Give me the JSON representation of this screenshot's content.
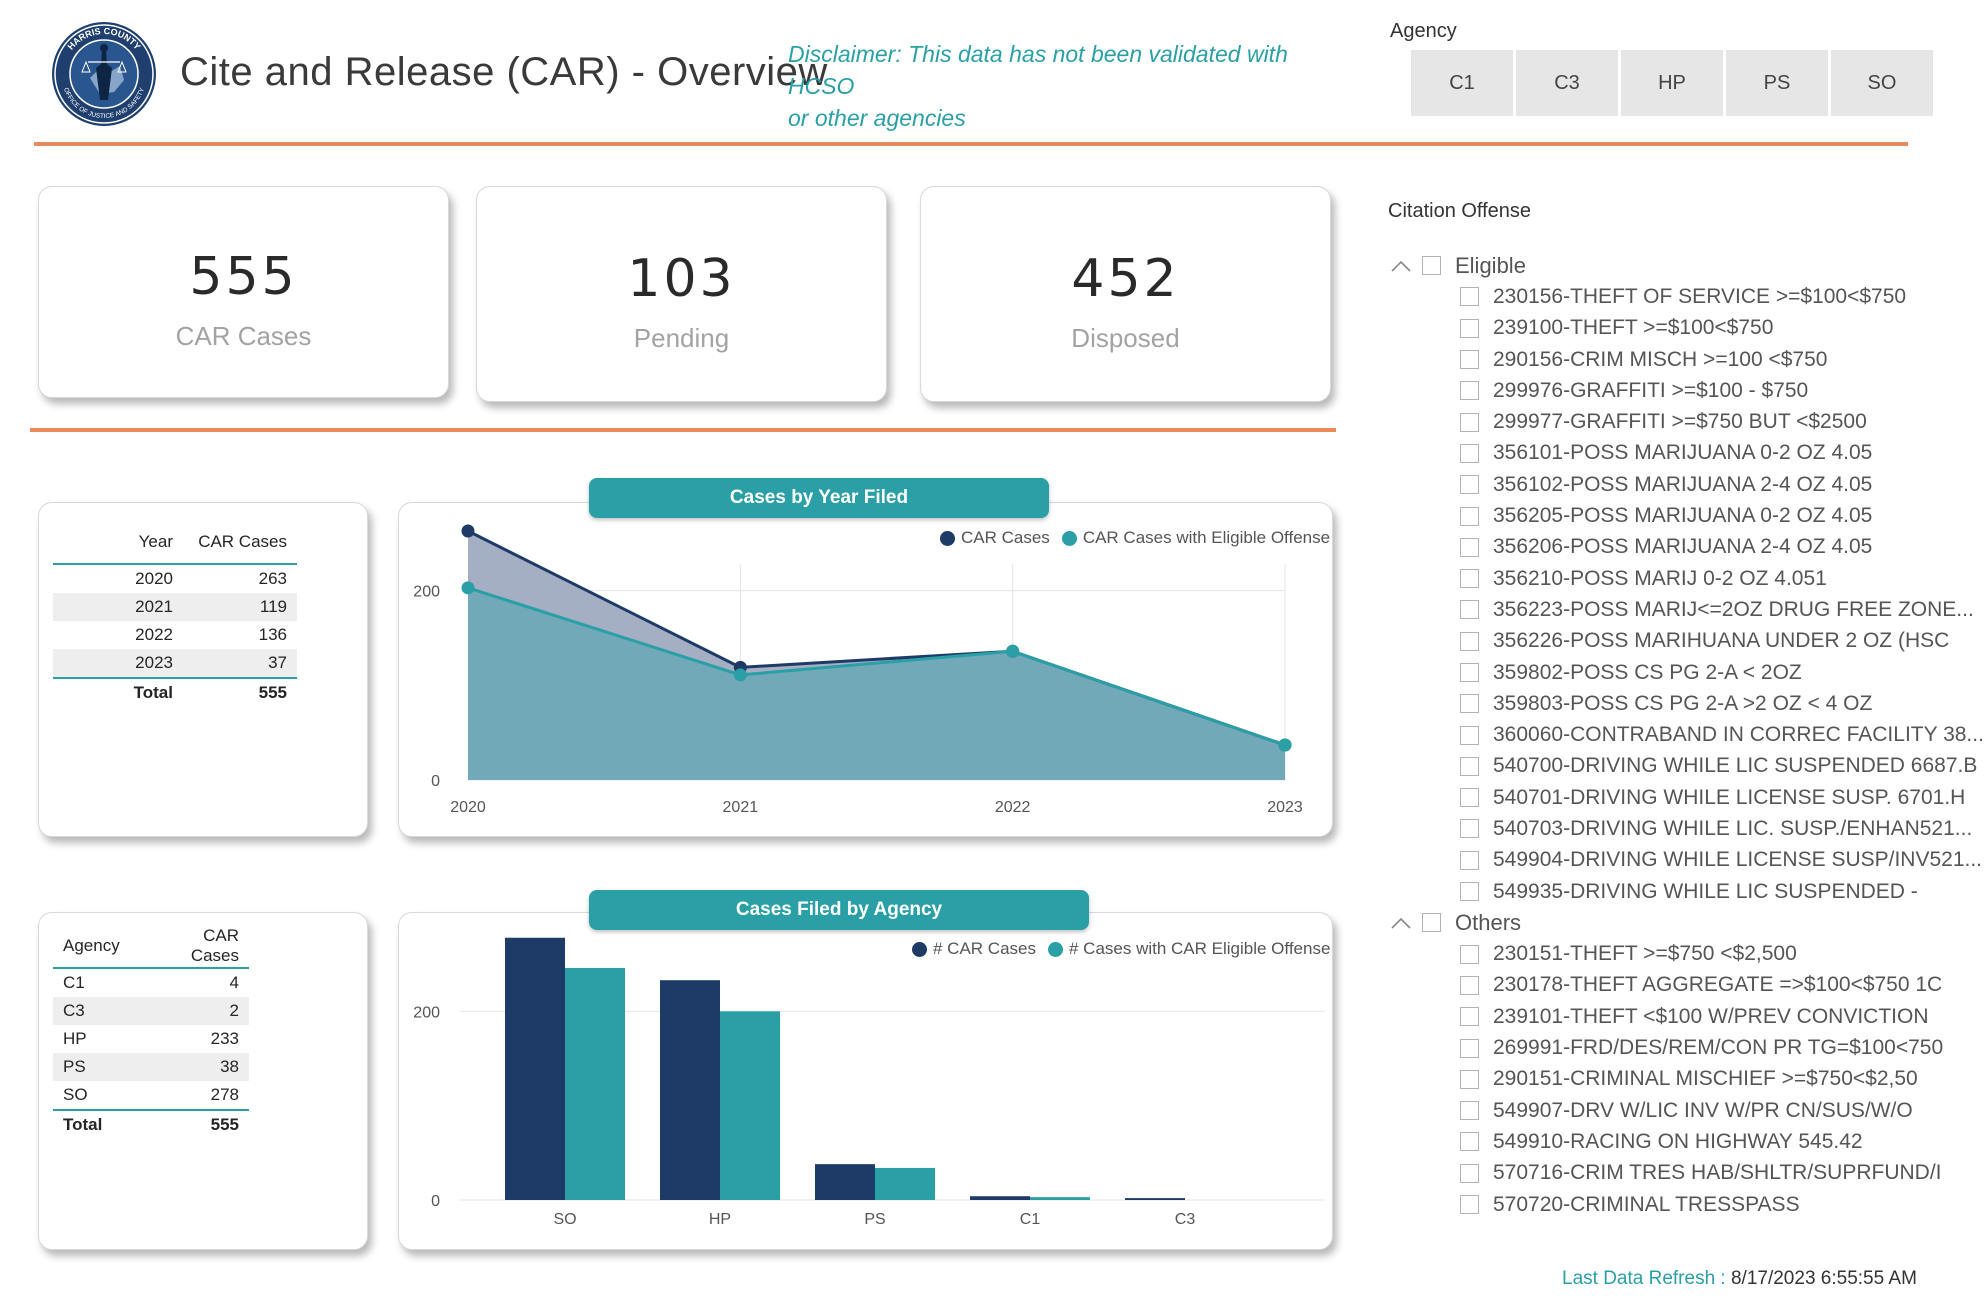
{
  "header": {
    "title": "Cite and Release (CAR) - Overview",
    "disclaimer_line1": "Disclaimer:  This data has not been validated with HCSO",
    "disclaimer_line2": "or other agencies",
    "logo_text_top": "HARRIS COUNTY",
    "logo_text_bottom": "OFFICE OF JUSTICE AND SAFETY"
  },
  "agency_slicer": {
    "label": "Agency",
    "options": [
      "C1",
      "C3",
      "HP",
      "PS",
      "SO"
    ]
  },
  "kpis": [
    {
      "value": "555",
      "label": "CAR Cases"
    },
    {
      "value": "103",
      "label": "Pending"
    },
    {
      "value": "452",
      "label": "Disposed"
    }
  ],
  "year_table": {
    "headers": [
      "Year",
      "CAR Cases"
    ],
    "rows": [
      {
        "year": "2020",
        "cases": "263"
      },
      {
        "year": "2021",
        "cases": "119"
      },
      {
        "year": "2022",
        "cases": "136"
      },
      {
        "year": "2023",
        "cases": "37"
      }
    ],
    "total_label": "Total",
    "total_value": "555"
  },
  "agency_table": {
    "headers": [
      "Agency",
      "CAR Cases"
    ],
    "rows": [
      {
        "agency": "C1",
        "cases": "4"
      },
      {
        "agency": "C3",
        "cases": "2"
      },
      {
        "agency": "HP",
        "cases": "233"
      },
      {
        "agency": "PS",
        "cases": "38"
      },
      {
        "agency": "SO",
        "cases": "278"
      }
    ],
    "total_label": "Total",
    "total_value": "555"
  },
  "chart_data": [
    {
      "type": "area",
      "title": "Cases by Year Filed",
      "x": [
        "2020",
        "2021",
        "2022",
        "2023"
      ],
      "series": [
        {
          "name": "CAR Cases",
          "values": [
            263,
            119,
            136,
            37
          ],
          "color": "#1e3a66"
        },
        {
          "name": "CAR Cases with Eligible Offense",
          "values": [
            203,
            111,
            136,
            37
          ],
          "color": "#2a9fa6"
        }
      ],
      "y_ticks": [
        0,
        200
      ],
      "ylim": [
        0,
        300
      ],
      "legend": "top-right",
      "grid": true
    },
    {
      "type": "bar",
      "title": "Cases Filed by Agency",
      "categories": [
        "SO",
        "HP",
        "PS",
        "C1",
        "C3"
      ],
      "series": [
        {
          "name": "# CAR Cases",
          "values": [
            278,
            233,
            38,
            4,
            2
          ],
          "color": "#1e3a66"
        },
        {
          "name": "# Cases with CAR Eligible Offense",
          "values": [
            246,
            200,
            34,
            3,
            0
          ],
          "color": "#2a9fa6"
        }
      ],
      "y_ticks": [
        0,
        200
      ],
      "ylim": [
        0,
        300
      ],
      "legend": "top-right",
      "grid": true
    }
  ],
  "citation_slicer": {
    "label": "Citation Offense",
    "groups": [
      {
        "name": "Eligible",
        "items": [
          "230156-THEFT OF SERVICE >=$100<$750",
          "239100-THEFT >=$100<$750",
          "290156-CRIM MISCH >=100 <$750",
          "299976-GRAFFITI >=$100 - $750",
          "299977-GRAFFITI >=$750 BUT <$2500",
          "356101-POSS MARIJUANA 0-2 OZ 4.05",
          "356102-POSS MARIJUANA 2-4 OZ 4.05",
          "356205-POSS MARIJUANA 0-2 OZ 4.05",
          "356206-POSS MARIJUANA 2-4 OZ 4.05",
          "356210-POSS MARIJ 0-2 OZ 4.051",
          "356223-POSS MARIJ<=2OZ DRUG FREE ZONE...",
          "356226-POSS MARIHUANA UNDER 2 OZ (HSC",
          "359802-POSS CS PG 2-A < 2OZ",
          "359803-POSS CS PG 2-A >2 OZ < 4 OZ",
          "360060-CONTRABAND IN CORREC FACILITY 38...",
          "540700-DRIVING WHILE LIC SUSPENDED 6687.B",
          "540701-DRIVING WHILE LICENSE SUSP. 6701.H",
          "540703-DRIVING WHILE LIC. SUSP./ENHAN521...",
          "549904-DRIVING WHILE LICENSE SUSP/INV521...",
          "549935-DRIVING WHILE LIC SUSPENDED -"
        ]
      },
      {
        "name": "Others",
        "items": [
          "230151-THEFT >=$750 <$2,500",
          "230178-THEFT AGGREGATE =>$100<$750 1C",
          "239101-THEFT <$100 W/PREV CONVICTION",
          "269991-FRD/DES/REM/CON PR TG=$100<750",
          "290151-CRIMINAL MISCHIEF >=$750<$2,50",
          "549907-DRV W/LIC INV W/PR CN/SUS/W/O",
          "549910-RACING ON HIGHWAY 545.42",
          "570716-CRIM TRES HAB/SHLTR/SUPRFUND/I",
          "570720-CRIMINAL TRESSPASS"
        ]
      }
    ]
  },
  "refresh": {
    "label": "Last Data Refresh :",
    "value": "8/17/2023 6:55:55 AM"
  }
}
